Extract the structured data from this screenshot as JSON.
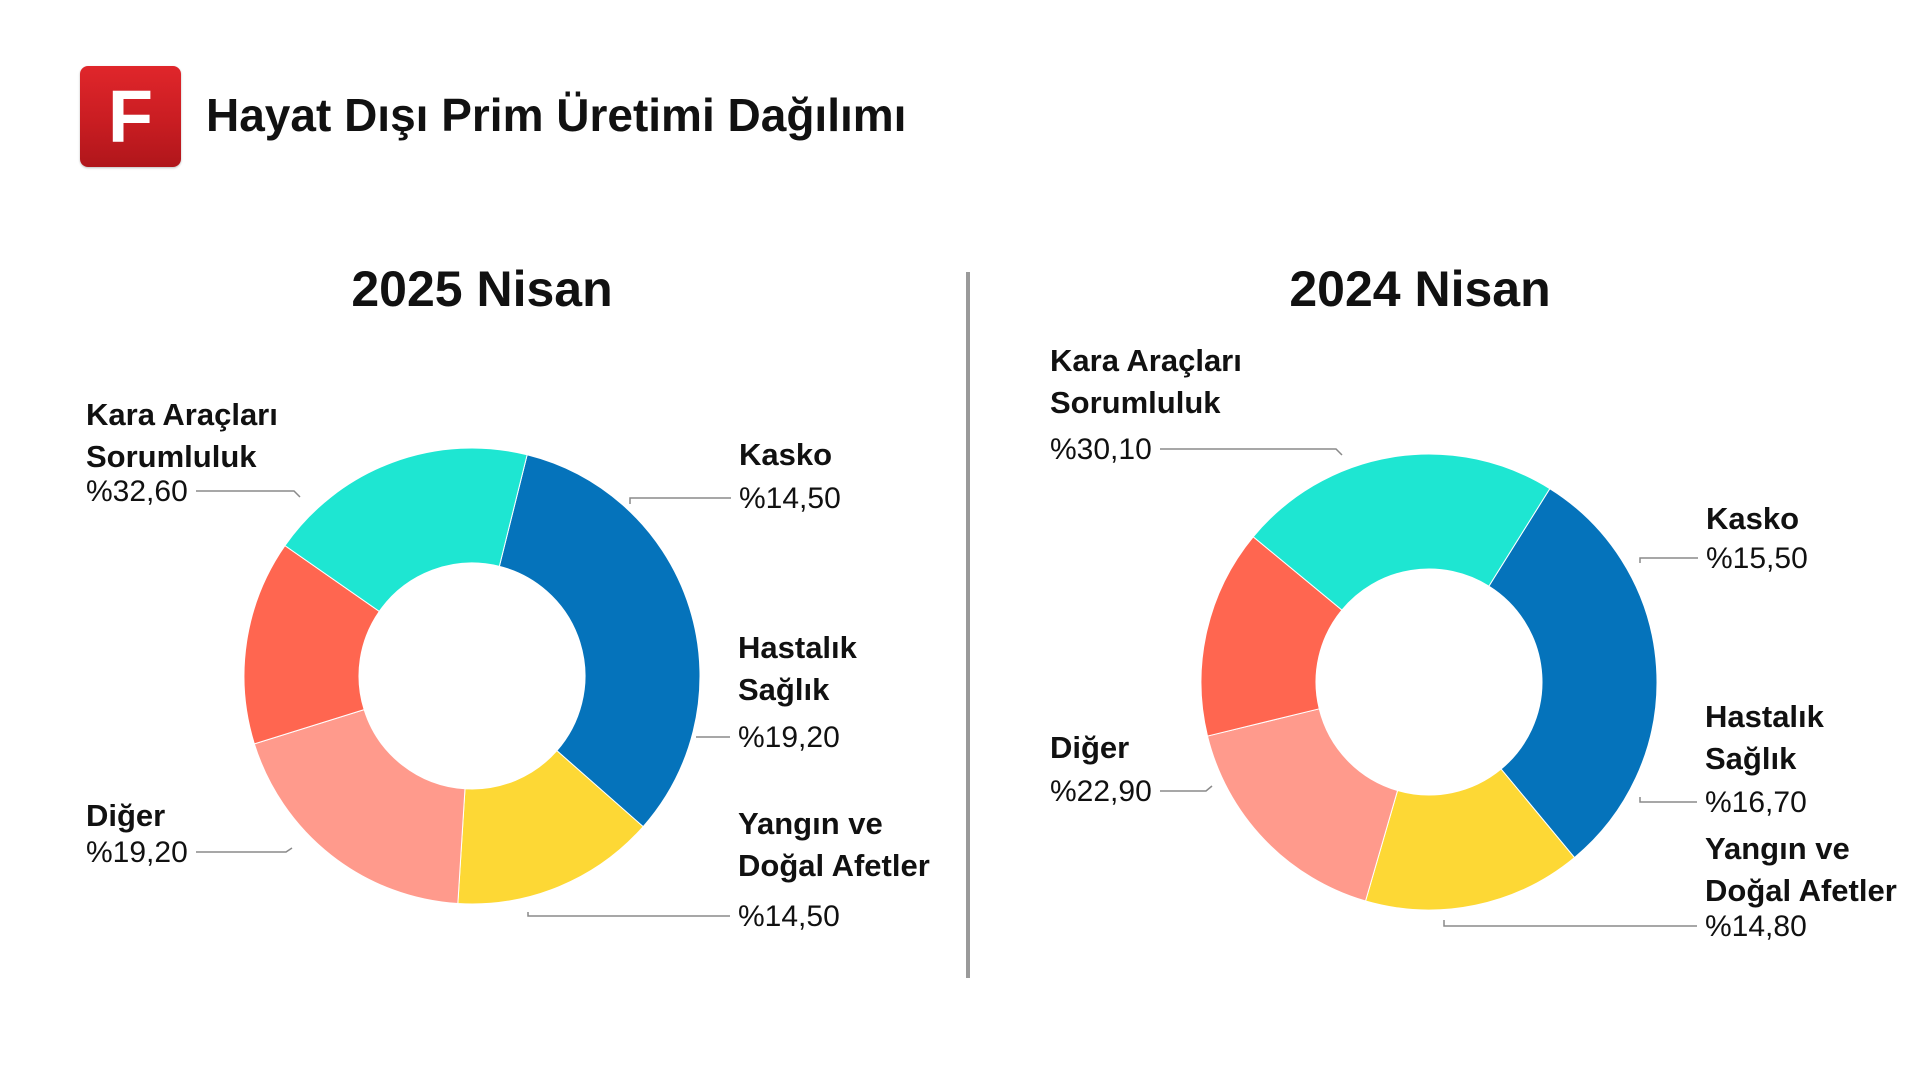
{
  "header": {
    "logo_letter": "F",
    "title": "Hayat Dışı Prim Üretimi Dağılımı"
  },
  "colors": {
    "Kara Araçları Sorumluluk": "#0573bb",
    "Kasko": "#fdd835",
    "Hastalık Sağlık": "#ff9a8c",
    "Yangın ve Doğal Afetler": "#ff6650",
    "Diğer": "#1ee6d2"
  },
  "chart_data": [
    {
      "type": "pie",
      "title": "2025 Nisan",
      "donut": true,
      "categories": [
        "Kara Araçları Sorumluluk",
        "Kasko",
        "Hastalık Sağlık",
        "Yangın ve Doğal Afetler",
        "Diğer"
      ],
      "values": [
        32.6,
        14.5,
        19.2,
        14.5,
        19.2
      ],
      "labels": [
        {
          "name_lines": [
            "Kara Araçları",
            "Sorumluluk"
          ],
          "value_text": "%32,60"
        },
        {
          "name_lines": [
            "Kasko"
          ],
          "value_text": "%14,50"
        },
        {
          "name_lines": [
            "Hastalık",
            "Sağlık"
          ],
          "value_text": "%19,20"
        },
        {
          "name_lines": [
            "Yangın ve",
            "Doğal Afetler"
          ],
          "value_text": "%14,50"
        },
        {
          "name_lines": [
            "Diğer"
          ],
          "value_text": "%19,20"
        }
      ]
    },
    {
      "type": "pie",
      "title": "2024 Nisan",
      "donut": true,
      "categories": [
        "Kara Araçları Sorumluluk",
        "Kasko",
        "Hastalık Sağlık",
        "Yangın ve Doğal Afetler",
        "Diğer"
      ],
      "values": [
        30.1,
        15.5,
        16.7,
        14.8,
        22.9
      ],
      "labels": [
        {
          "name_lines": [
            "Kara Araçları",
            "Sorumluluk"
          ],
          "value_text": "%30,10"
        },
        {
          "name_lines": [
            "Kasko"
          ],
          "value_text": "%15,50"
        },
        {
          "name_lines": [
            "Hastalık",
            "Sağlık"
          ],
          "value_text": "%16,70"
        },
        {
          "name_lines": [
            "Yangın ve",
            "Doğal Afetler"
          ],
          "value_text": "%14,80"
        },
        {
          "name_lines": [
            "Diğer"
          ],
          "value_text": "%22,90"
        }
      ]
    }
  ]
}
